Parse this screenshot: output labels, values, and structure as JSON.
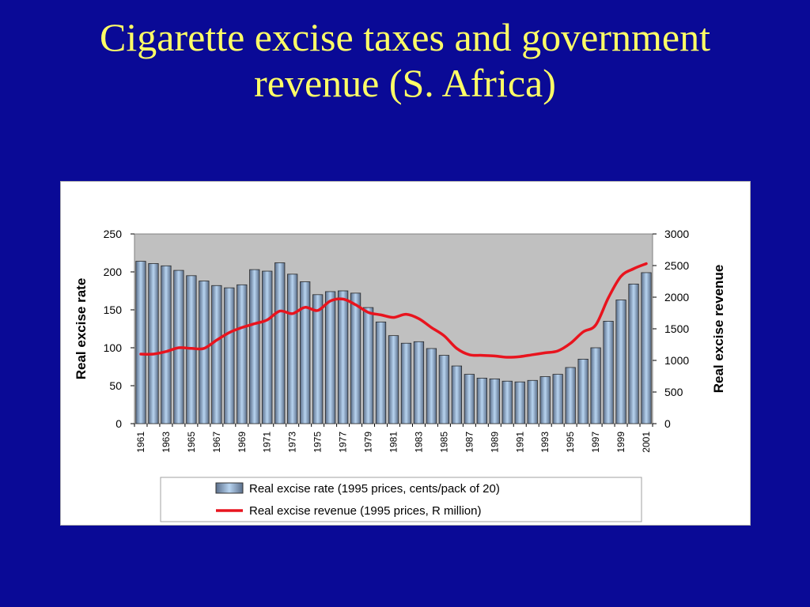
{
  "slide": {
    "title_line1": "Cigarette excise taxes and government",
    "title_line2": "revenue (S. Africa)"
  },
  "colors": {
    "background": "#0A0A96",
    "title": "#FFFF66",
    "plot_area": "#C0C0C0",
    "bar_fill_light": "#B8D4F0",
    "bar_fill_dark": "#5A6E8A",
    "line": "#E8141E"
  },
  "chart_data": {
    "type": "bar",
    "title": "",
    "xlabel": "",
    "ylabel": "Real excise rate",
    "y2label": "Real excise revenue",
    "ylim": [
      0,
      250
    ],
    "y2lim": [
      0,
      3000
    ],
    "yticks": [
      0,
      50,
      100,
      150,
      200,
      250
    ],
    "y2ticks": [
      0,
      500,
      1000,
      1500,
      2000,
      2500,
      3000
    ],
    "grid": false,
    "legend_position": "bottom",
    "categories": [
      "1961",
      "1962",
      "1963",
      "1964",
      "1965",
      "1966",
      "1967",
      "1968",
      "1969",
      "1970",
      "1971",
      "1972",
      "1973",
      "1974",
      "1975",
      "1976",
      "1977",
      "1978",
      "1979",
      "1980",
      "1981",
      "1982",
      "1983",
      "1984",
      "1985",
      "1986",
      "1987",
      "1988",
      "1989",
      "1990",
      "1991",
      "1992",
      "1993",
      "1994",
      "1995",
      "1996",
      "1997",
      "1998",
      "1999",
      "2000",
      "2001"
    ],
    "xtick_labels": [
      "1961",
      "",
      "1963",
      "",
      "1965",
      "",
      "1967",
      "",
      "1969",
      "",
      "1971",
      "",
      "1973",
      "",
      "1975",
      "",
      "1977",
      "",
      "1979",
      "",
      "1981",
      "",
      "1983",
      "",
      "1985",
      "",
      "1987",
      "",
      "1989",
      "",
      "1991",
      "",
      "1993",
      "",
      "1995",
      "",
      "1997",
      "",
      "1999",
      "",
      "2001"
    ],
    "series": [
      {
        "name": "Real excise rate (1995 prices, cents/pack of 20)",
        "type": "bar",
        "axis": "left",
        "values": [
          214,
          211,
          208,
          202,
          195,
          188,
          182,
          179,
          183,
          203,
          201,
          212,
          197,
          187,
          170,
          174,
          175,
          172,
          153,
          134,
          116,
          106,
          108,
          99,
          90,
          76,
          65,
          60,
          59,
          56,
          55,
          57,
          62,
          65,
          74,
          85,
          100,
          135,
          163,
          184,
          199
        ]
      },
      {
        "name": "Real excise revenue (1995 prices, R million)",
        "type": "line",
        "axis": "right",
        "values": [
          1100,
          1100,
          1140,
          1200,
          1190,
          1190,
          1320,
          1440,
          1520,
          1580,
          1640,
          1780,
          1740,
          1840,
          1790,
          1940,
          1970,
          1880,
          1760,
          1720,
          1680,
          1730,
          1660,
          1520,
          1390,
          1190,
          1090,
          1080,
          1070,
          1050,
          1060,
          1090,
          1120,
          1150,
          1270,
          1450,
          1560,
          1990,
          2330,
          2450,
          2530
        ]
      }
    ]
  }
}
